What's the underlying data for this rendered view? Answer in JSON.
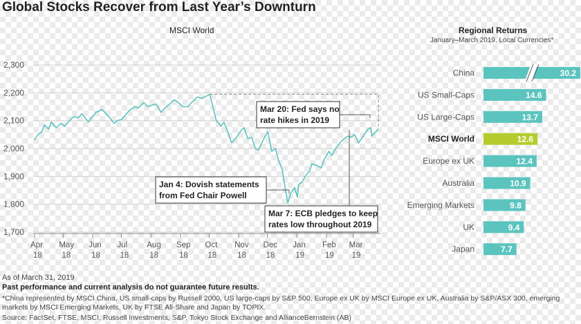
{
  "title": "Global Stocks Recover from Last Year’s Downturn",
  "chart_data": [
    {
      "type": "line",
      "title": "MSCI World",
      "y_ticks": [
        "2,300",
        "2,200",
        "2,100",
        "2,000",
        "1,900",
        "1,800",
        "1,700"
      ],
      "ylim": [
        1700,
        2300
      ],
      "x_ticks": [
        {
          "month": "Apr",
          "year": "18"
        },
        {
          "month": "May",
          "year": "18"
        },
        {
          "month": "Jun",
          "year": "18"
        },
        {
          "month": "Jul",
          "year": "18"
        },
        {
          "month": "Aug",
          "year": "18"
        },
        {
          "month": "Sep",
          "year": "18"
        },
        {
          "month": "Oct",
          "year": "18"
        },
        {
          "month": "Nov",
          "year": "18"
        },
        {
          "month": "Dec",
          "year": "18"
        },
        {
          "month": "Jan",
          "year": "19"
        },
        {
          "month": "Feb",
          "year": "19"
        },
        {
          "month": "Mar",
          "year": "19"
        }
      ],
      "x_range": [
        "2018-04-01",
        "2019-03-31"
      ],
      "series": [
        {
          "color": "#5bc4bf",
          "points": [
            [
              "2018-04-02",
              2030
            ],
            [
              "2018-04-06",
              2050
            ],
            [
              "2018-04-10",
              2060
            ],
            [
              "2018-04-13",
              2085
            ],
            [
              "2018-04-17",
              2070
            ],
            [
              "2018-04-20",
              2095
            ],
            [
              "2018-04-25",
              2075
            ],
            [
              "2018-04-30",
              2090
            ],
            [
              "2018-05-04",
              2080
            ],
            [
              "2018-05-09",
              2100
            ],
            [
              "2018-05-14",
              2115
            ],
            [
              "2018-05-18",
              2110
            ],
            [
              "2018-05-22",
              2125
            ],
            [
              "2018-05-29",
              2095
            ],
            [
              "2018-06-01",
              2110
            ],
            [
              "2018-06-06",
              2130
            ],
            [
              "2018-06-12",
              2140
            ],
            [
              "2018-06-15",
              2130
            ],
            [
              "2018-06-19",
              2115
            ],
            [
              "2018-06-25",
              2090
            ],
            [
              "2018-06-28",
              2100
            ],
            [
              "2018-07-03",
              2105
            ],
            [
              "2018-07-09",
              2130
            ],
            [
              "2018-07-12",
              2140
            ],
            [
              "2018-07-17",
              2150
            ],
            [
              "2018-07-20",
              2145
            ],
            [
              "2018-07-26",
              2165
            ],
            [
              "2018-07-30",
              2150
            ],
            [
              "2018-08-03",
              2155
            ],
            [
              "2018-08-08",
              2160
            ],
            [
              "2018-08-13",
              2130
            ],
            [
              "2018-08-17",
              2145
            ],
            [
              "2018-08-22",
              2160
            ],
            [
              "2018-08-27",
              2175
            ],
            [
              "2018-08-31",
              2165
            ],
            [
              "2018-09-05",
              2150
            ],
            [
              "2018-09-10",
              2150
            ],
            [
              "2018-09-14",
              2165
            ],
            [
              "2018-09-20",
              2185
            ],
            [
              "2018-09-24",
              2180
            ],
            [
              "2018-09-28",
              2185
            ],
            [
              "2018-10-03",
              2195
            ],
            [
              "2018-10-05",
              2170
            ],
            [
              "2018-10-10",
              2100
            ],
            [
              "2018-10-15",
              2080
            ],
            [
              "2018-10-18",
              2095
            ],
            [
              "2018-10-22",
              2060
            ],
            [
              "2018-10-26",
              2020
            ],
            [
              "2018-10-31",
              2040
            ],
            [
              "2018-11-05",
              2065
            ],
            [
              "2018-11-08",
              2075
            ],
            [
              "2018-11-12",
              2035
            ],
            [
              "2018-11-16",
              2040
            ],
            [
              "2018-11-20",
              2000
            ],
            [
              "2018-11-23",
              1995
            ],
            [
              "2018-11-28",
              2030
            ],
            [
              "2018-12-03",
              2060
            ],
            [
              "2018-12-07",
              1990
            ],
            [
              "2018-12-11",
              2000
            ],
            [
              "2018-12-14",
              1960
            ],
            [
              "2018-12-18",
              1925
            ],
            [
              "2018-12-21",
              1860
            ],
            [
              "2018-12-24",
              1805
            ],
            [
              "2018-12-27",
              1840
            ],
            [
              "2018-12-31",
              1860
            ],
            [
              "2019-01-03",
              1825
            ],
            [
              "2019-01-04",
              1870
            ],
            [
              "2019-01-08",
              1880
            ],
            [
              "2019-01-11",
              1900
            ],
            [
              "2019-01-16",
              1920
            ],
            [
              "2019-01-18",
              1945
            ],
            [
              "2019-01-23",
              1940
            ],
            [
              "2019-01-28",
              1930
            ],
            [
              "2019-01-31",
              1960
            ],
            [
              "2019-02-05",
              1990
            ],
            [
              "2019-02-08",
              1975
            ],
            [
              "2019-02-13",
              2005
            ],
            [
              "2019-02-19",
              2030
            ],
            [
              "2019-02-25",
              2045
            ],
            [
              "2019-02-28",
              2040
            ],
            [
              "2019-03-04",
              2050
            ],
            [
              "2019-03-08",
              2020
            ],
            [
              "2019-03-13",
              2045
            ],
            [
              "2019-03-18",
              2070
            ],
            [
              "2019-03-21",
              2075
            ],
            [
              "2019-03-22",
              2045
            ],
            [
              "2019-03-26",
              2060
            ],
            [
              "2019-03-29",
              2070
            ]
          ]
        }
      ],
      "annotations": [
        {
          "id": "fed-mar20",
          "lines": [
            "Mar 20: Fed says no",
            "rate hikes in 2019"
          ],
          "date": "2019-03-20",
          "value": 2080
        },
        {
          "id": "dovish-jan4",
          "lines": [
            "Jan 4: Dovish statements",
            "from Fed Chair Powell"
          ],
          "date": "2019-01-04",
          "value": 1800
        },
        {
          "id": "ecb-mar7",
          "lines": [
            "Mar 7: ECB pledges to keep",
            "rates low throughout 2019"
          ],
          "date": "2019-03-07",
          "value": 2020
        }
      ],
      "reference_line": {
        "from": "2018-10-03",
        "to": "2019-03-29",
        "value": 2195,
        "style": "dashed"
      },
      "grid": true,
      "legend": "none"
    },
    {
      "type": "bar",
      "orientation": "horizontal",
      "title": "Regional Returns",
      "subtitle": "January–March 2019, Local Currencies*",
      "categories": [
        "China",
        "US Small-Caps",
        "US Large-Caps",
        "MSCI World",
        "Europe ex UK",
        "Australia",
        "Emerging Markets",
        "UK",
        "Japan"
      ],
      "values": [
        30.2,
        14.6,
        13.7,
        12.6,
        12.4,
        10.9,
        9.8,
        9.4,
        7.7
      ],
      "value_labels": [
        "30.2",
        "14.6",
        "13.7",
        "12.6",
        "12.4",
        "10.9",
        "9.8",
        "9.4",
        "7.7"
      ],
      "highlight": "MSCI World",
      "broken_axis_category": "China",
      "colors": {
        "default": "#5bc4bf",
        "highlight": "#b5cc2e"
      }
    }
  ],
  "footer": {
    "as_of": "As of March 31, 2019",
    "disclaimer": "Past performance and current analysis do not guarantee future results.",
    "note": "*China represented by MSCI China, US small-caps by Russell 2000, US large-caps by S&P 500, Europe ex UK by MSCI Europe ex UK, Australia by S&P/ASX 300, emerging markets by MSCI Emerging Markets, UK by FTSE All-Share and Japan by TOPIX.",
    "source": "Source: FactSet, FTSE, MSCI, Russell Investments, S&P, Tokyo Stock Exchange and AllianceBernstein (AB)"
  }
}
